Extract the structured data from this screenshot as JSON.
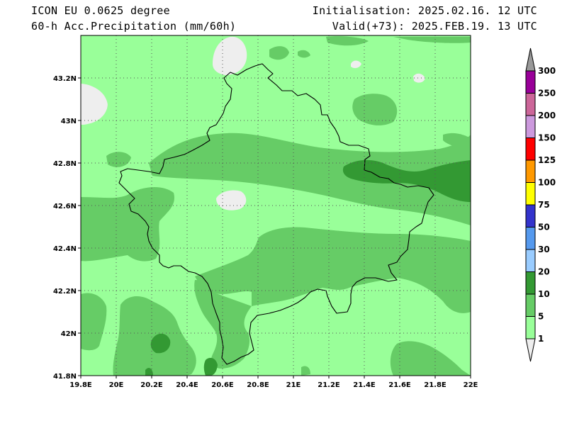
{
  "header": {
    "model": "ICON EU 0.0625 degree",
    "variable": "60-h Acc.Precipitation (mm/60h)",
    "init": "Initialisation: 2025.02.16. 12 UTC",
    "valid": "Valid(+73): 2025.FEB.19. 13 UTC"
  },
  "map": {
    "lon_range": [
      19.8,
      22.0
    ],
    "lat_range": [
      41.8,
      43.4
    ],
    "x_ticks": [
      {
        "v": 19.8,
        "label": "19.8E"
      },
      {
        "v": 20.0,
        "label": "20E"
      },
      {
        "v": 20.2,
        "label": "20.2E"
      },
      {
        "v": 20.4,
        "label": "20.4E"
      },
      {
        "v": 20.6,
        "label": "20.6E"
      },
      {
        "v": 20.8,
        "label": "20.8E"
      },
      {
        "v": 21.0,
        "label": "21E"
      },
      {
        "v": 21.2,
        "label": "21.2E"
      },
      {
        "v": 21.4,
        "label": "21.4E"
      },
      {
        "v": 21.6,
        "label": "21.6E"
      },
      {
        "v": 21.8,
        "label": "21.8E"
      },
      {
        "v": 22.0,
        "label": "22E"
      }
    ],
    "y_ticks": [
      {
        "v": 41.8,
        "label": "41.8N"
      },
      {
        "v": 42.0,
        "label": "42N"
      },
      {
        "v": 42.2,
        "label": "42.2N"
      },
      {
        "v": 42.4,
        "label": "42.4N"
      },
      {
        "v": 42.6,
        "label": "42.6N"
      },
      {
        "v": 42.8,
        "label": "42.8N"
      },
      {
        "v": 43.0,
        "label": "43N"
      },
      {
        "v": 43.2,
        "label": "43.2N"
      }
    ],
    "grid": true
  },
  "legend": {
    "levels": [
      {
        "label": "1",
        "color": "#99ff99"
      },
      {
        "label": "5",
        "color": "#66cc66"
      },
      {
        "label": "10",
        "color": "#339933"
      },
      {
        "label": "20",
        "color": "#99ccff"
      },
      {
        "label": "30",
        "color": "#5599ee"
      },
      {
        "label": "50",
        "color": "#3333cc"
      },
      {
        "label": "75",
        "color": "#ffff00"
      },
      {
        "label": "100",
        "color": "#ff9900"
      },
      {
        "label": "125",
        "color": "#ff0000"
      },
      {
        "label": "150",
        "color": "#cc99dd"
      },
      {
        "label": "200",
        "color": "#cc6699"
      },
      {
        "label": "250",
        "color": "#990099"
      },
      {
        "label": "300",
        "color": "#999999"
      }
    ],
    "below_color": "#eeeeee"
  }
}
